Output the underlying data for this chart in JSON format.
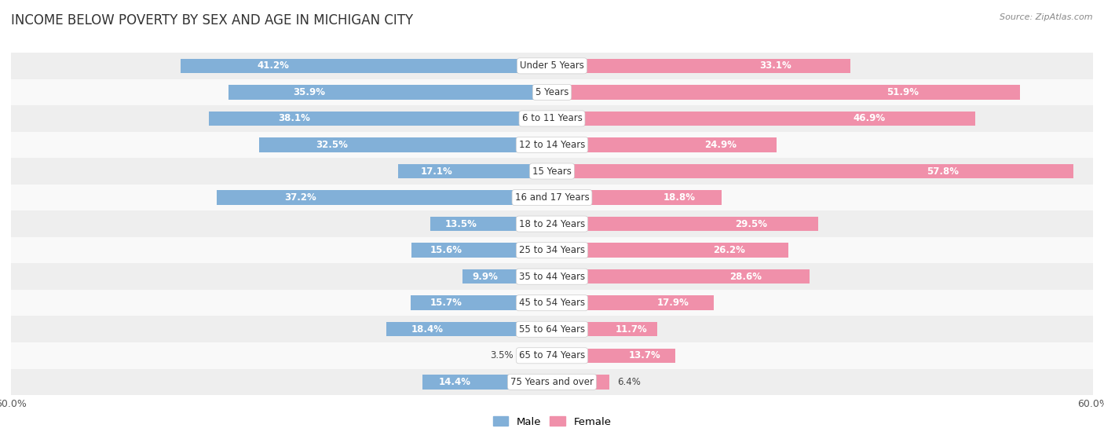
{
  "title": "INCOME BELOW POVERTY BY SEX AND AGE IN MICHIGAN CITY",
  "source": "Source: ZipAtlas.com",
  "categories": [
    "Under 5 Years",
    "5 Years",
    "6 to 11 Years",
    "12 to 14 Years",
    "15 Years",
    "16 and 17 Years",
    "18 to 24 Years",
    "25 to 34 Years",
    "35 to 44 Years",
    "45 to 54 Years",
    "55 to 64 Years",
    "65 to 74 Years",
    "75 Years and over"
  ],
  "male": [
    41.2,
    35.9,
    38.1,
    32.5,
    17.1,
    37.2,
    13.5,
    15.6,
    9.9,
    15.7,
    18.4,
    3.5,
    14.4
  ],
  "female": [
    33.1,
    51.9,
    46.9,
    24.9,
    57.8,
    18.8,
    29.5,
    26.2,
    28.6,
    17.9,
    11.7,
    13.7,
    6.4
  ],
  "male_color": "#82b0d8",
  "female_color": "#f090aa",
  "background_row_odd": "#eeeeee",
  "background_row_even": "#f9f9f9",
  "axis_max": 60.0,
  "legend_male": "Male",
  "legend_female": "Female",
  "title_fontsize": 12,
  "label_fontsize": 8.5,
  "category_fontsize": 8.5,
  "tick_fontsize": 9
}
